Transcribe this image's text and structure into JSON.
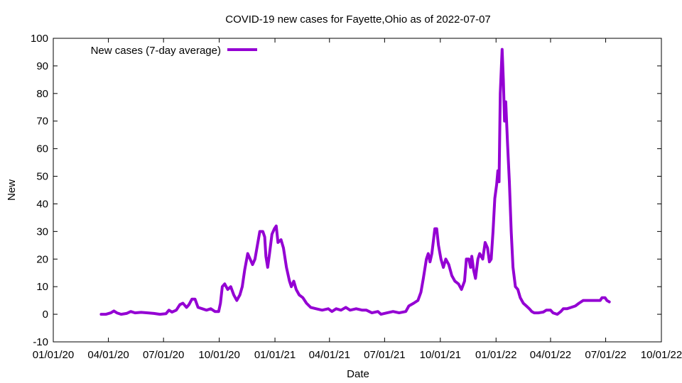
{
  "chart_data": {
    "type": "line",
    "title": "COVID-19 new cases for Fayette,Ohio as of 2022-07-07",
    "xlabel": "Date",
    "ylabel": "New",
    "xlim": [
      "2020-01-01",
      "2022-10-01"
    ],
    "ylim": [
      -10,
      100
    ],
    "x_ticks": [
      "01/01/20",
      "04/01/20",
      "07/01/20",
      "10/01/20",
      "01/01/21",
      "04/01/21",
      "07/01/21",
      "10/01/21",
      "01/01/22",
      "04/01/22",
      "07/01/22",
      "10/01/22"
    ],
    "y_ticks": [
      -10,
      0,
      10,
      20,
      30,
      40,
      50,
      60,
      70,
      80,
      90,
      100
    ],
    "grid": false,
    "legend_position": "top-left",
    "series": [
      {
        "name": "New cases (7-day average)",
        "color": "#9400d3",
        "points": [
          [
            "2020-03-20",
            0
          ],
          [
            "2020-03-28",
            0
          ],
          [
            "2020-04-05",
            0.5
          ],
          [
            "2020-04-10",
            1.2
          ],
          [
            "2020-04-15",
            0.5
          ],
          [
            "2020-04-22",
            0
          ],
          [
            "2020-05-01",
            0.3
          ],
          [
            "2020-05-08",
            1
          ],
          [
            "2020-05-15",
            0.5
          ],
          [
            "2020-05-25",
            0.7
          ],
          [
            "2020-06-05",
            0.5
          ],
          [
            "2020-06-15",
            0.3
          ],
          [
            "2020-06-25",
            0
          ],
          [
            "2020-07-05",
            0.2
          ],
          [
            "2020-07-10",
            1.5
          ],
          [
            "2020-07-15",
            0.8
          ],
          [
            "2020-07-22",
            1.5
          ],
          [
            "2020-07-28",
            3.5
          ],
          [
            "2020-08-02",
            4
          ],
          [
            "2020-08-08",
            2.5
          ],
          [
            "2020-08-12",
            3.5
          ],
          [
            "2020-08-17",
            5.5
          ],
          [
            "2020-08-22",
            5.5
          ],
          [
            "2020-08-27",
            2.5
          ],
          [
            "2020-09-03",
            2
          ],
          [
            "2020-09-10",
            1.5
          ],
          [
            "2020-09-17",
            2
          ],
          [
            "2020-09-24",
            1
          ],
          [
            "2020-09-30",
            1
          ],
          [
            "2020-10-03",
            4
          ],
          [
            "2020-10-06",
            10
          ],
          [
            "2020-10-10",
            11
          ],
          [
            "2020-10-15",
            9
          ],
          [
            "2020-10-20",
            10
          ],
          [
            "2020-10-25",
            7
          ],
          [
            "2020-10-30",
            5
          ],
          [
            "2020-11-04",
            7
          ],
          [
            "2020-11-08",
            10
          ],
          [
            "2020-11-12",
            16
          ],
          [
            "2020-11-17",
            22
          ],
          [
            "2020-11-21",
            20
          ],
          [
            "2020-11-25",
            18
          ],
          [
            "2020-11-29",
            20
          ],
          [
            "2020-12-03",
            25
          ],
          [
            "2020-12-07",
            30
          ],
          [
            "2020-12-12",
            30
          ],
          [
            "2020-12-15",
            28
          ],
          [
            "2020-12-17",
            21
          ],
          [
            "2020-12-20",
            17
          ],
          [
            "2020-12-23",
            22
          ],
          [
            "2020-12-27",
            29
          ],
          [
            "2020-12-31",
            31
          ],
          [
            "2021-01-03",
            32
          ],
          [
            "2021-01-06",
            26
          ],
          [
            "2021-01-11",
            27
          ],
          [
            "2021-01-15",
            24
          ],
          [
            "2021-01-20",
            17
          ],
          [
            "2021-01-25",
            12
          ],
          [
            "2021-01-28",
            10
          ],
          [
            "2021-02-01",
            12
          ],
          [
            "2021-02-05",
            9
          ],
          [
            "2021-02-10",
            7
          ],
          [
            "2021-02-16",
            6
          ],
          [
            "2021-02-22",
            4
          ],
          [
            "2021-03-01",
            2.5
          ],
          [
            "2021-03-10",
            2
          ],
          [
            "2021-03-20",
            1.5
          ],
          [
            "2021-03-30",
            2
          ],
          [
            "2021-04-05",
            1
          ],
          [
            "2021-04-12",
            2
          ],
          [
            "2021-04-20",
            1.5
          ],
          [
            "2021-04-28",
            2.5
          ],
          [
            "2021-05-05",
            1.5
          ],
          [
            "2021-05-15",
            2
          ],
          [
            "2021-05-25",
            1.5
          ],
          [
            "2021-06-01",
            1.5
          ],
          [
            "2021-06-10",
            0.5
          ],
          [
            "2021-06-20",
            1
          ],
          [
            "2021-06-25",
            0
          ],
          [
            "2021-07-05",
            0.5
          ],
          [
            "2021-07-15",
            1
          ],
          [
            "2021-07-25",
            0.5
          ],
          [
            "2021-08-05",
            1
          ],
          [
            "2021-08-10",
            3
          ],
          [
            "2021-08-18",
            4
          ],
          [
            "2021-08-25",
            5
          ],
          [
            "2021-08-30",
            8
          ],
          [
            "2021-09-03",
            13
          ],
          [
            "2021-09-08",
            20
          ],
          [
            "2021-09-11",
            22
          ],
          [
            "2021-09-14",
            19
          ],
          [
            "2021-09-17",
            22
          ],
          [
            "2021-09-22",
            31
          ],
          [
            "2021-09-25",
            31
          ],
          [
            "2021-09-28",
            25
          ],
          [
            "2021-10-02",
            20
          ],
          [
            "2021-10-06",
            17
          ],
          [
            "2021-10-10",
            20
          ],
          [
            "2021-10-15",
            18
          ],
          [
            "2021-10-20",
            14
          ],
          [
            "2021-10-25",
            12
          ],
          [
            "2021-10-31",
            11
          ],
          [
            "2021-11-05",
            9
          ],
          [
            "2021-11-10",
            12
          ],
          [
            "2021-11-13",
            20
          ],
          [
            "2021-11-17",
            20
          ],
          [
            "2021-11-20",
            17
          ],
          [
            "2021-11-22",
            21
          ],
          [
            "2021-11-25",
            16
          ],
          [
            "2021-11-28",
            13
          ],
          [
            "2021-12-02",
            20
          ],
          [
            "2021-12-05",
            22
          ],
          [
            "2021-12-10",
            20
          ],
          [
            "2021-12-14",
            26
          ],
          [
            "2021-12-18",
            24
          ],
          [
            "2021-12-21",
            19
          ],
          [
            "2021-12-24",
            20
          ],
          [
            "2021-12-27",
            30
          ],
          [
            "2021-12-30",
            42
          ],
          [
            "2022-01-02",
            47
          ],
          [
            "2022-01-04",
            52
          ],
          [
            "2022-01-06",
            48
          ],
          [
            "2022-01-08",
            80
          ],
          [
            "2022-01-11",
            96
          ],
          [
            "2022-01-13",
            85
          ],
          [
            "2022-01-15",
            70
          ],
          [
            "2022-01-17",
            77
          ],
          [
            "2022-01-20",
            62
          ],
          [
            "2022-01-23",
            48
          ],
          [
            "2022-01-26",
            30
          ],
          [
            "2022-01-29",
            17
          ],
          [
            "2022-02-02",
            10
          ],
          [
            "2022-02-06",
            9
          ],
          [
            "2022-02-10",
            6
          ],
          [
            "2022-02-15",
            4
          ],
          [
            "2022-02-20",
            3
          ],
          [
            "2022-02-25",
            2
          ],
          [
            "2022-03-01",
            1
          ],
          [
            "2022-03-05",
            0.5
          ],
          [
            "2022-03-12",
            0.5
          ],
          [
            "2022-03-20",
            0.8
          ],
          [
            "2022-03-25",
            1.5
          ],
          [
            "2022-04-01",
            1.5
          ],
          [
            "2022-04-05",
            0.5
          ],
          [
            "2022-04-12",
            0
          ],
          [
            "2022-04-18",
            1
          ],
          [
            "2022-04-22",
            2
          ],
          [
            "2022-04-28",
            2
          ],
          [
            "2022-05-05",
            2.5
          ],
          [
            "2022-05-12",
            3
          ],
          [
            "2022-05-18",
            4
          ],
          [
            "2022-05-25",
            5
          ],
          [
            "2022-06-01",
            5
          ],
          [
            "2022-06-08",
            5
          ],
          [
            "2022-06-15",
            5
          ],
          [
            "2022-06-22",
            5
          ],
          [
            "2022-06-25",
            6
          ],
          [
            "2022-06-30",
            6
          ],
          [
            "2022-07-03",
            5
          ],
          [
            "2022-07-07",
            4.5
          ]
        ]
      }
    ]
  }
}
